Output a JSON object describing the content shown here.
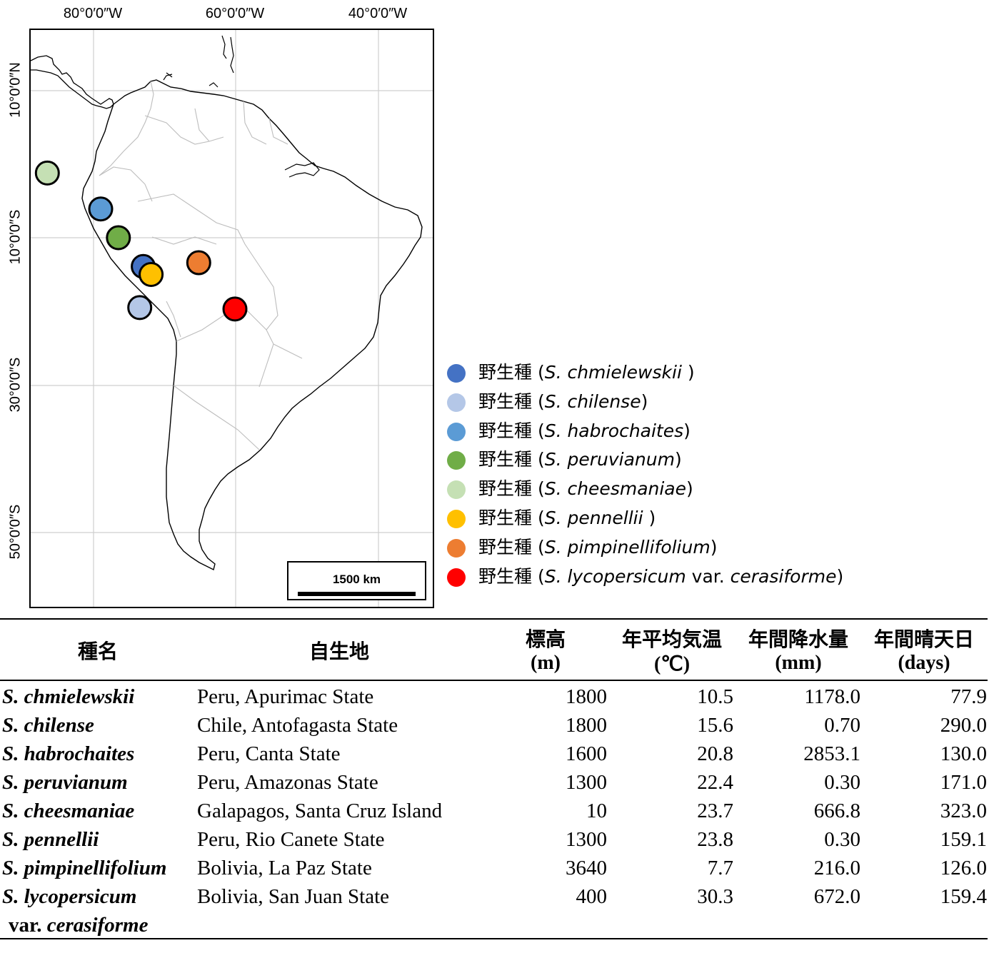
{
  "map": {
    "lon_labels": [
      "80°0′0″W",
      "60°0′0″W",
      "40°0′0″W"
    ],
    "lat_labels": [
      "10°0′0″N",
      "10°0′0″S",
      "30°0′0″S",
      "50°0′0″S"
    ],
    "scale_label": "1500 km",
    "markers": [
      {
        "name": "S. chmielewskii",
        "color": "#4472C4",
        "lon": -73,
        "lat": -13.9
      },
      {
        "name": "S. chilense",
        "color": "#B4C7E7",
        "lon": -73.5,
        "lat": -19.5
      },
      {
        "name": "S. habrochaites",
        "color": "#5B9BD5",
        "lon": -79,
        "lat": -6.1
      },
      {
        "name": "S. peruvianum",
        "color": "#70AD47",
        "lon": -76.5,
        "lat": -10
      },
      {
        "name": "S. cheesmaniae",
        "color": "#C5E0B4",
        "lon": -86.5,
        "lat": -1.2
      },
      {
        "name": "S. pennellii",
        "color": "#FFC000",
        "lon": -71.9,
        "lat": -15
      },
      {
        "name": "S. pimpinellifolium",
        "color": "#ED7D31",
        "lon": -65.2,
        "lat": -13.4
      },
      {
        "name": "S. lycopersicum var. cerasiforme",
        "color": "#FF0000",
        "lon": -60.1,
        "lat": -19.7
      }
    ]
  },
  "legend": [
    {
      "prefix": "野生種 (",
      "species": "S. chmielewskii ",
      "mid": "",
      "species2": "",
      "suffix": ")",
      "color": "#4472C4"
    },
    {
      "prefix": "野生種 (",
      "species": "S. chilense",
      "mid": "",
      "species2": "",
      "suffix": ")",
      "color": "#B4C7E7"
    },
    {
      "prefix": "野生種 (",
      "species": "S. habrochaites",
      "mid": "",
      "species2": "",
      "suffix": ")",
      "color": "#5B9BD5"
    },
    {
      "prefix": "野生種 (",
      "species": "S. peruvianum",
      "mid": "",
      "species2": "",
      "suffix": ")",
      "color": "#70AD47"
    },
    {
      "prefix": "野生種 (",
      "species": "S. cheesmaniae",
      "mid": "",
      "species2": "",
      "suffix": ")",
      "color": "#C5E0B4"
    },
    {
      "prefix": "野生種 (",
      "species": "S. pennellii ",
      "mid": "",
      "species2": "",
      "suffix": ")",
      "color": "#FFC000"
    },
    {
      "prefix": "野生種 (",
      "species": "S. pimpinellifolium",
      "mid": "",
      "species2": "",
      "suffix": ")",
      "color": "#ED7D31"
    },
    {
      "prefix": "野生種 (",
      "species": "S. lycopersicum",
      "mid": " var. ",
      "species2": "cerasiforme",
      "suffix": ")",
      "color": "#FF0000"
    }
  ],
  "table": {
    "headers": {
      "species": "種名",
      "habitat": "自生地",
      "elevation": "標高",
      "elevation_unit": "(m)",
      "temperature": "年平均気温",
      "temperature_unit": "(℃)",
      "precipitation": "年間降水量",
      "precipitation_unit": "(mm)",
      "sunny_days": "年間晴天日",
      "sunny_days_unit": "(days)"
    },
    "rows": [
      {
        "species": "S. chmielewskii",
        "habitat": "Peru, Apurimac State",
        "elevation": "1800",
        "temperature": "10.5",
        "precipitation": "1178.0",
        "sunny_days": "77.9"
      },
      {
        "species": "S. chilense",
        "habitat": "Chile, Antofagasta State",
        "elevation": "1800",
        "temperature": "15.6",
        "precipitation": "0.70",
        "sunny_days": "290.0"
      },
      {
        "species": "S. habrochaites",
        "habitat": "Peru, Canta State",
        "elevation": "1600",
        "temperature": "20.8",
        "precipitation": "2853.1",
        "sunny_days": "130.0"
      },
      {
        "species": "S. peruvianum",
        "habitat": "Peru, Amazonas State",
        "elevation": "1300",
        "temperature": "22.4",
        "precipitation": "0.30",
        "sunny_days": "171.0"
      },
      {
        "species": "S. cheesmaniae",
        "habitat": "Galapagos, Santa Cruz Island",
        "elevation": "10",
        "temperature": "23.7",
        "precipitation": "666.8",
        "sunny_days": "323.0"
      },
      {
        "species": "S. pennellii",
        "habitat": "Peru, Rio Canete State",
        "elevation": "1300",
        "temperature": "23.8",
        "precipitation": "0.30",
        "sunny_days": "159.1"
      },
      {
        "species": "S. pimpinellifolium",
        "habitat": "Bolivia, La Paz State",
        "elevation": "3640",
        "temperature": "7.7",
        "precipitation": "216.0",
        "sunny_days": "126.0"
      },
      {
        "species": "S. lycopersicum",
        "species_line2_var": "var.",
        "species_line2_name": "cerasiforme",
        "habitat": "Bolivia, San Juan State",
        "elevation": "400",
        "temperature": "30.3",
        "precipitation": "672.0",
        "sunny_days": "159.4"
      }
    ]
  }
}
